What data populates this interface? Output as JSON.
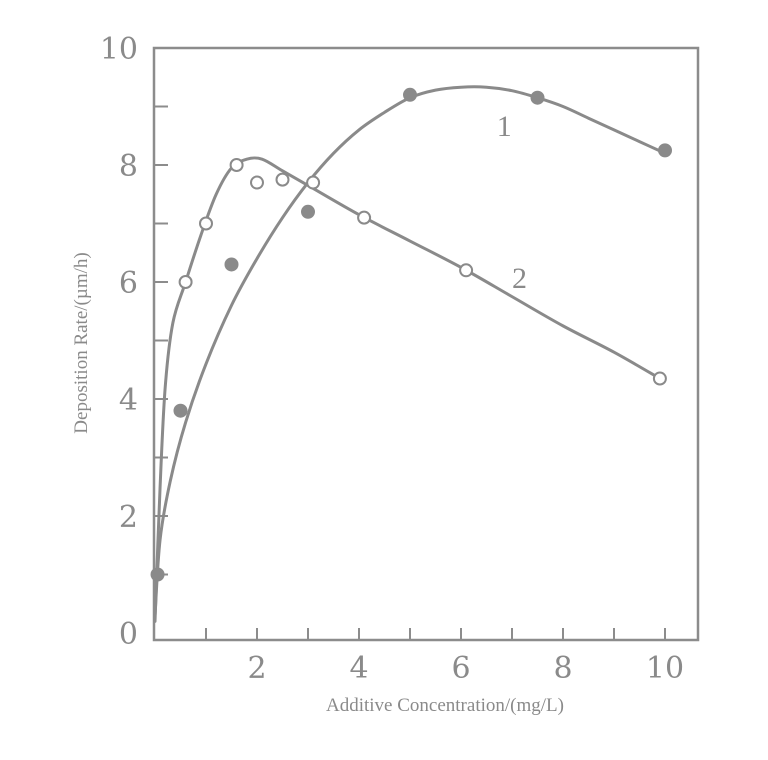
{
  "chart_data": {
    "type": "scatter",
    "title": "",
    "xlabel": "Additive Concentration/(mg/L)",
    "ylabel": "Deposition Rate/(µm/h)",
    "xlim": [
      0,
      10.6
    ],
    "ylim": [
      0,
      10
    ],
    "x_ticks": [
      0,
      1,
      2,
      3,
      4,
      5,
      6,
      7,
      8,
      9,
      10
    ],
    "x_tick_labels": [
      "2",
      "4",
      "6",
      "8",
      "10"
    ],
    "x_tick_label_values": [
      2,
      4,
      6,
      8,
      10
    ],
    "y_ticks": [
      0,
      1,
      2,
      3,
      4,
      5,
      6,
      7,
      8,
      9,
      10
    ],
    "y_tick_labels": [
      "0",
      "2",
      "4",
      "6",
      "8",
      "10"
    ],
    "y_tick_label_values": [
      0,
      2,
      4,
      6,
      8,
      10
    ],
    "grid": false,
    "legend": "inline curve labels",
    "series": [
      {
        "name": "1",
        "marker": "filled-circle",
        "points": [
          {
            "x": 0.05,
            "y": 1.0
          },
          {
            "x": 0.5,
            "y": 3.8
          },
          {
            "x": 1.5,
            "y": 6.3
          },
          {
            "x": 3.0,
            "y": 7.2
          },
          {
            "x": 5.0,
            "y": 9.2
          },
          {
            "x": 7.5,
            "y": 9.15
          },
          {
            "x": 10.0,
            "y": 8.25
          }
        ],
        "curve": [
          [
            0.0,
            0.3
          ],
          [
            0.1,
            1.6
          ],
          [
            0.3,
            2.6
          ],
          [
            0.6,
            3.6
          ],
          [
            1.0,
            4.6
          ],
          [
            1.5,
            5.6
          ],
          [
            2.0,
            6.4
          ],
          [
            2.5,
            7.1
          ],
          [
            3.0,
            7.7
          ],
          [
            3.5,
            8.2
          ],
          [
            4.0,
            8.6
          ],
          [
            4.5,
            8.9
          ],
          [
            5.0,
            9.15
          ],
          [
            5.5,
            9.28
          ],
          [
            6.0,
            9.33
          ],
          [
            6.5,
            9.33
          ],
          [
            7.0,
            9.27
          ],
          [
            7.5,
            9.15
          ],
          [
            8.0,
            9.0
          ],
          [
            8.5,
            8.8
          ],
          [
            9.0,
            8.6
          ],
          [
            9.5,
            8.4
          ],
          [
            10.0,
            8.2
          ]
        ],
        "label_position": {
          "x": 6.7,
          "y": 8.5
        }
      },
      {
        "name": "2",
        "marker": "open-circle",
        "points": [
          {
            "x": 0.6,
            "y": 6.0
          },
          {
            "x": 1.0,
            "y": 7.0
          },
          {
            "x": 1.6,
            "y": 8.0
          },
          {
            "x": 2.0,
            "y": 7.7
          },
          {
            "x": 2.5,
            "y": 7.75
          },
          {
            "x": 3.1,
            "y": 7.7
          },
          {
            "x": 4.1,
            "y": 7.1
          },
          {
            "x": 6.1,
            "y": 6.2
          },
          {
            "x": 9.9,
            "y": 4.35
          }
        ],
        "curve": [
          [
            0.0,
            0.2
          ],
          [
            0.1,
            2.5
          ],
          [
            0.2,
            4.2
          ],
          [
            0.35,
            5.3
          ],
          [
            0.6,
            6.0
          ],
          [
            0.9,
            6.8
          ],
          [
            1.2,
            7.5
          ],
          [
            1.5,
            7.95
          ],
          [
            1.8,
            8.1
          ],
          [
            2.1,
            8.1
          ],
          [
            2.5,
            7.9
          ],
          [
            3.0,
            7.65
          ],
          [
            4.0,
            7.15
          ],
          [
            5.0,
            6.7
          ],
          [
            6.0,
            6.25
          ],
          [
            7.0,
            5.75
          ],
          [
            8.0,
            5.25
          ],
          [
            9.0,
            4.8
          ],
          [
            9.9,
            4.35
          ]
        ],
        "label_position": {
          "x": 7.0,
          "y": 5.9
        }
      }
    ]
  },
  "axes": {
    "xlabel": "Additive Concentration/(mg/L)",
    "ylabel": "Deposition Rate/(µm/h)"
  },
  "labels": {
    "series1": "1",
    "series2": "2"
  },
  "colors": {
    "axis": "#8c8c8c",
    "line": "#8a8a8a",
    "marker_fill": "#8a8a8a",
    "text": "#8a8a8a",
    "background": "#ffffff"
  }
}
